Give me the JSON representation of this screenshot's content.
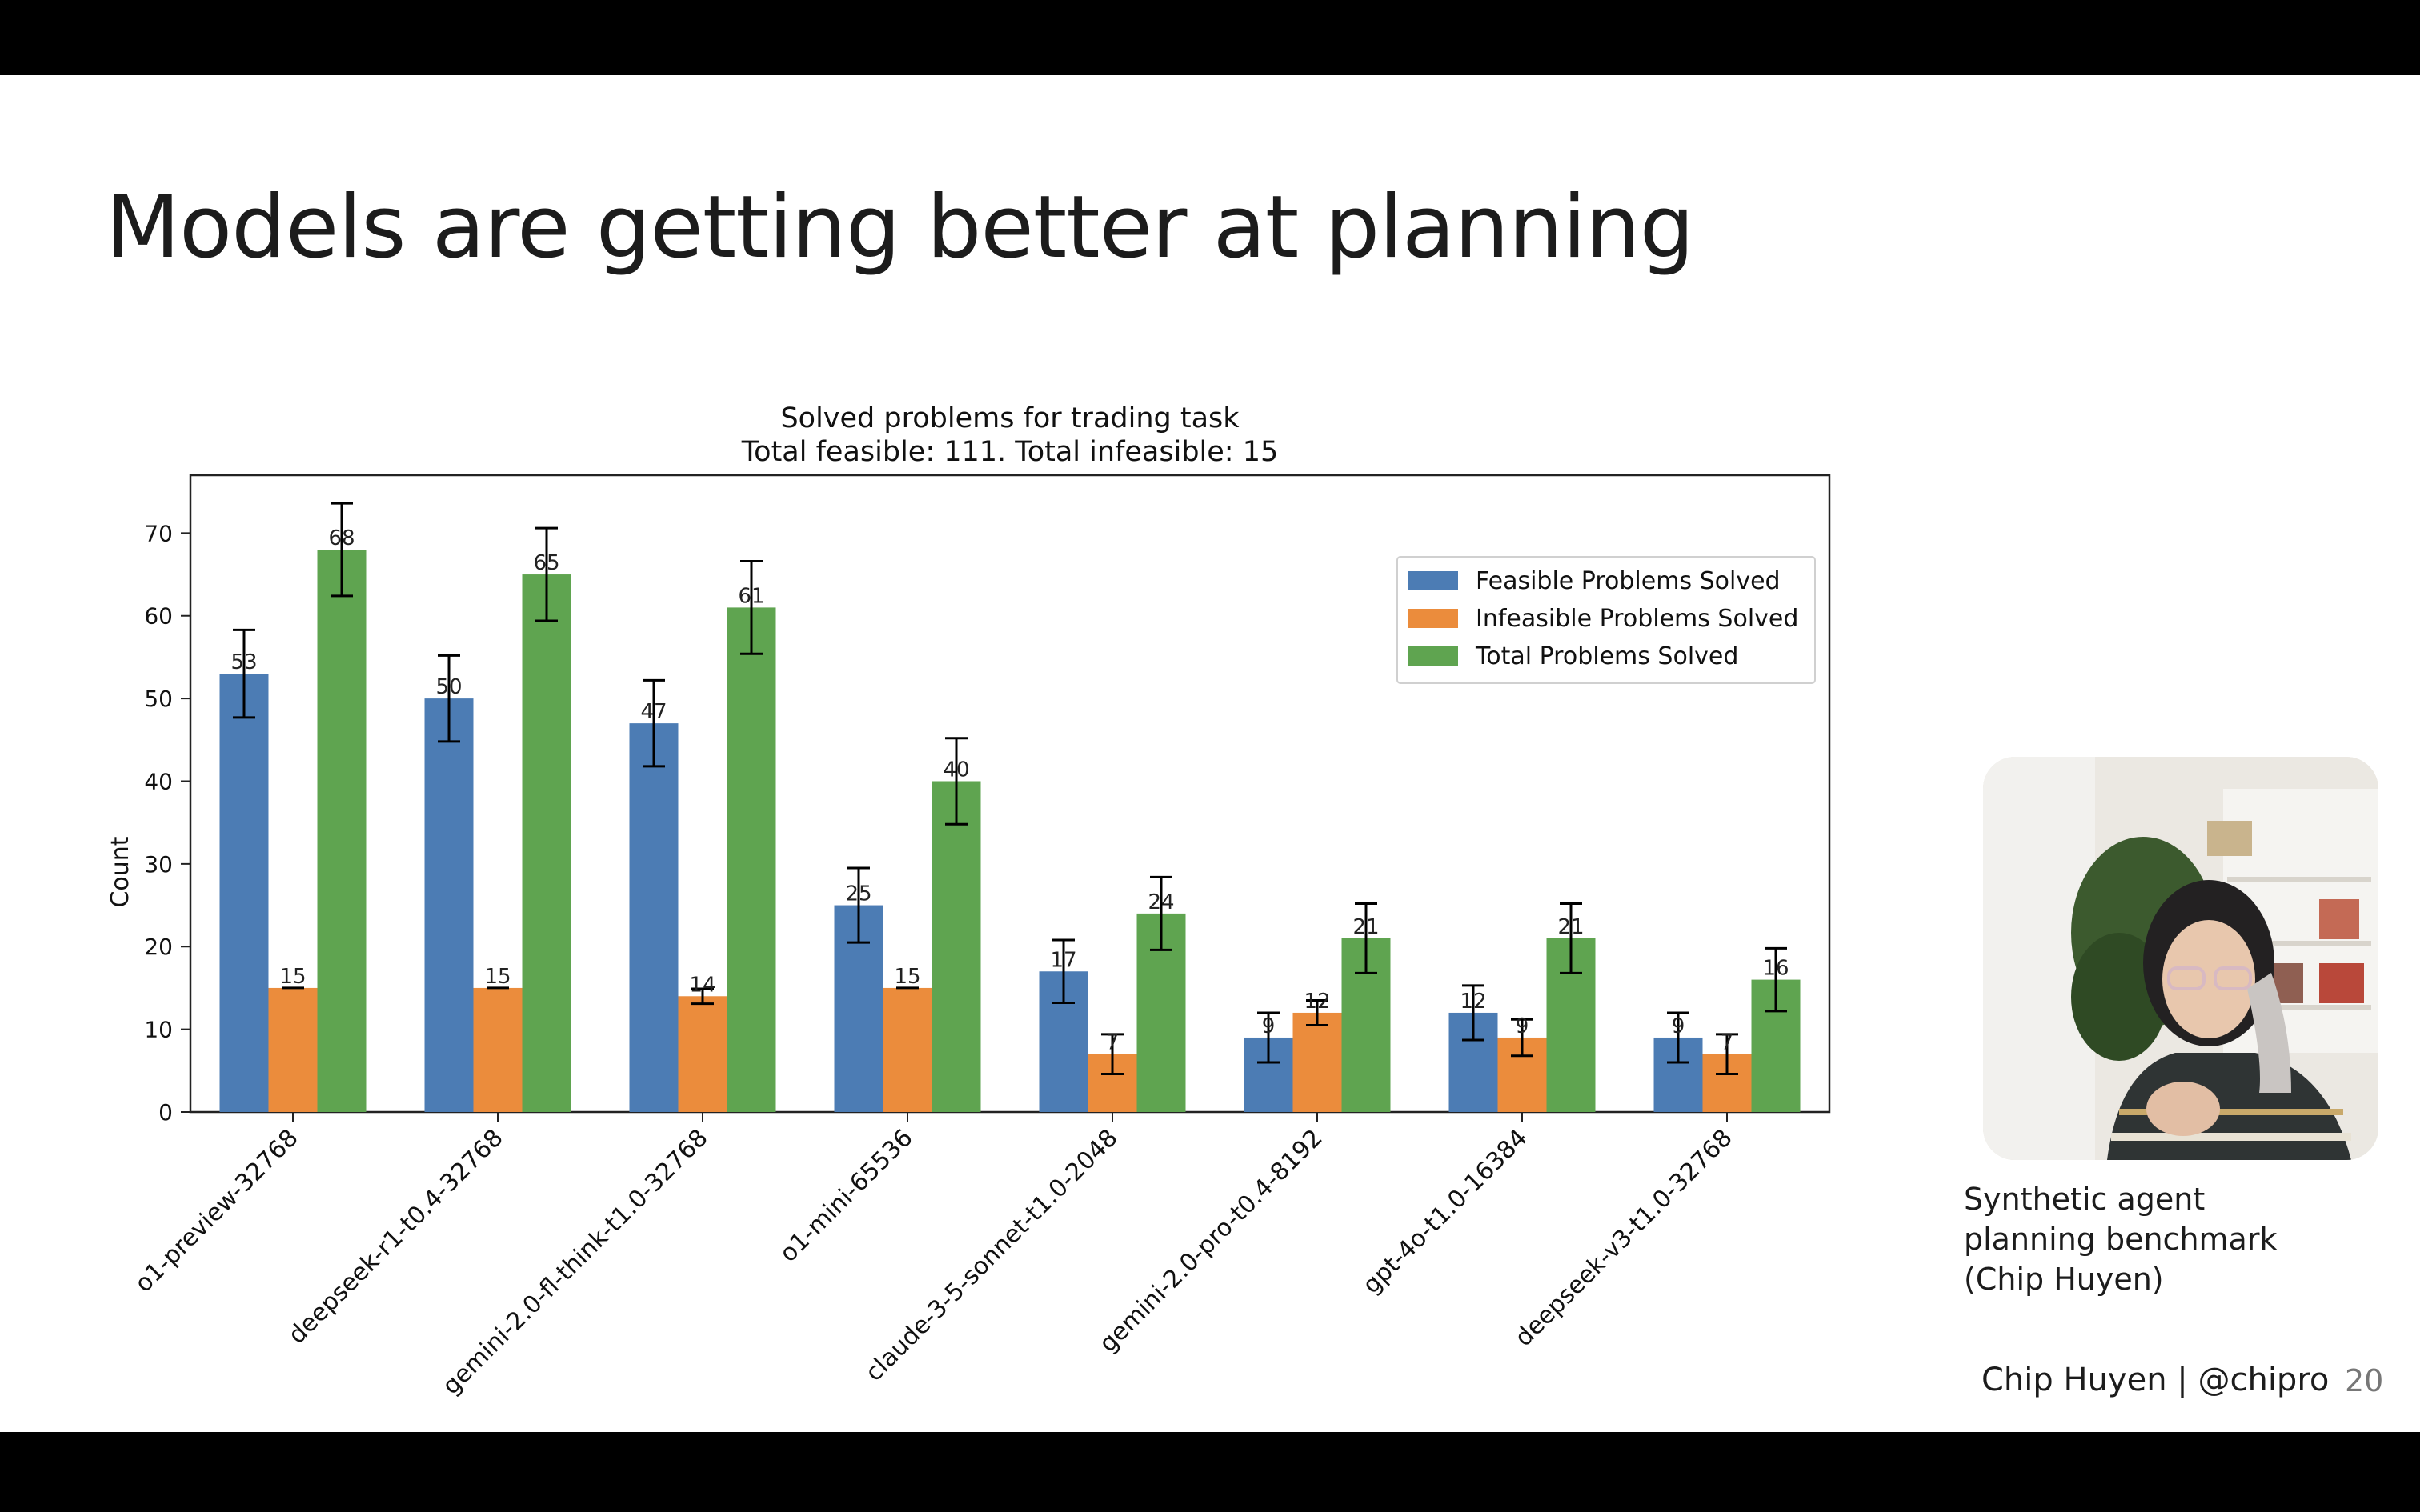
{
  "slide": {
    "title": "Models are getting better at planning",
    "caption_lines": [
      "Synthetic agent",
      "planning benchmark",
      "(Chip Huyen)"
    ],
    "footer_credit": "Chip Huyen | @chipro",
    "page_number": "20"
  },
  "colors": {
    "feasible": "#4c7cb4",
    "infeasible": "#eb8c3c",
    "total": "#5fa450",
    "error_bar": "#000000"
  },
  "chart_data": {
    "type": "bar",
    "title": "Solved problems for trading task",
    "subtitle": "Total feasible: 111. Total infeasible: 15",
    "xlabel": "",
    "ylabel": "Count",
    "ylim": [
      0,
      77
    ],
    "yticks": [
      0,
      10,
      20,
      30,
      40,
      50,
      60,
      70
    ],
    "grid": false,
    "legend_position": "top-right",
    "categories": [
      "o1-preview-32768",
      "deepseek-r1-t0.4-32768",
      "gemini-2.0-fl-think-t1.0-32768",
      "o1-mini-65536",
      "claude-3-5-sonnet-t1.0-2048",
      "gemini-2.0-pro-t0.4-8192",
      "gpt-4o-t1.0-16384",
      "deepseek-v3-t1.0-32768"
    ],
    "series": [
      {
        "name": "Feasible Problems Solved",
        "values": [
          53,
          50,
          47,
          25,
          17,
          9,
          12,
          9
        ],
        "errors": [
          5.3,
          5.2,
          5.2,
          4.5,
          3.8,
          3.0,
          3.3,
          3.0
        ]
      },
      {
        "name": "Infeasible Problems Solved",
        "values": [
          15,
          15,
          14,
          15,
          7,
          12,
          9,
          7
        ],
        "errors": [
          0,
          0,
          0.9,
          0,
          2.4,
          1.5,
          2.2,
          2.4
        ]
      },
      {
        "name": "Total Problems Solved",
        "values": [
          68,
          65,
          61,
          40,
          24,
          21,
          21,
          16
        ],
        "errors": [
          5.6,
          5.6,
          5.6,
          5.2,
          4.4,
          4.2,
          4.2,
          3.8
        ]
      }
    ]
  }
}
